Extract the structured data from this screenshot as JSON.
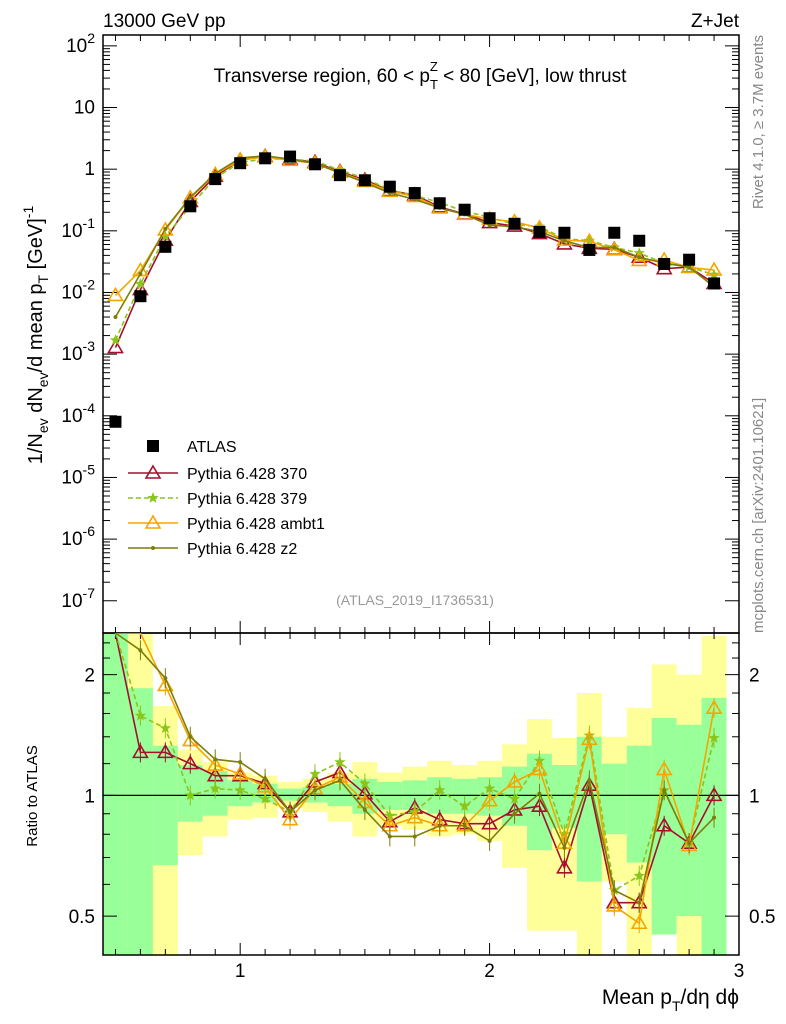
{
  "header": {
    "left": "13000 GeV pp",
    "right": "Z+Jet"
  },
  "side_texts": {
    "rivet": "Rivet 4.1.0, ≥ 3.7M events",
    "mcplots": "mcplots.cern.ch [arXiv:2401.10621]"
  },
  "chart_data": {
    "type": "line",
    "title": "Transverse region, 60 < p_T^Z < 80 [GeV], low thrust",
    "title_parts": {
      "a": "Transverse region, 60 < p",
      "sub": "T",
      "sup": "Z",
      "b": " < 80 [GeV], low thrust"
    },
    "analysis_id": "(ATLAS_2019_I1736531)",
    "xlabel": "Mean p_T/dη dϕ",
    "xlabel_parts": {
      "a": "Mean p",
      "sub": "T",
      "b": "/dη dϕ"
    },
    "ylabel": "1/N_ev dN_ev/d mean p_T [GeV]^-1",
    "ylabel_parts": {
      "a": "1/N",
      "s1": "ev",
      "b": " dN",
      "s2": "ev",
      "c": "/d mean p",
      "s3": "T",
      "d": " [GeV]",
      "sup": "-1"
    },
    "ratio_ylabel": "Ratio to ATLAS",
    "xlim": [
      0.45,
      3.0
    ],
    "ylim": [
      3e-08,
      150
    ],
    "ratio_ylim": [
      0.4,
      2.54
    ],
    "x_ticks": [
      "1",
      "2",
      "3"
    ],
    "y_ticks": [
      "10^2",
      "10",
      "1",
      "10^-1",
      "10^-2",
      "10^-3",
      "10^-4",
      "10^-5",
      "10^-6",
      "10^-7"
    ],
    "ratio_ticks": [
      "2",
      "1",
      "0.5"
    ],
    "x": [
      0.5,
      0.6,
      0.7,
      0.8,
      0.9,
      1.0,
      1.1,
      1.2,
      1.3,
      1.4,
      1.5,
      1.6,
      1.7,
      1.8,
      1.9,
      2.0,
      2.1,
      2.2,
      2.3,
      2.4,
      2.5,
      2.6,
      2.7,
      2.8,
      2.9
    ],
    "atlas": {
      "name": "ATLAS",
      "values": [
        8e-05,
        0.0087,
        0.055,
        0.25,
        0.69,
        1.25,
        1.5,
        1.6,
        1.2,
        0.8,
        0.66,
        0.52,
        0.41,
        0.28,
        0.22,
        0.16,
        0.13,
        0.096,
        0.093,
        0.049,
        0.093,
        0.069,
        0.029,
        0.034,
        0.014
      ],
      "stat_band": [
        [
          0.3,
          3
        ],
        [
          0.3,
          1.85
        ],
        [
          0.67,
          1.33
        ],
        [
          0.86,
          1.19
        ],
        [
          0.89,
          1.15
        ],
        [
          0.94,
          1.09
        ],
        [
          0.96,
          1.07
        ],
        [
          0.97,
          1.04
        ],
        [
          0.96,
          1.05
        ],
        [
          0.94,
          1.07
        ],
        [
          0.9,
          1.1
        ],
        [
          0.92,
          1.08
        ],
        [
          0.92,
          1.09
        ],
        [
          0.9,
          1.11
        ],
        [
          0.9,
          1.1
        ],
        [
          0.89,
          1.11
        ],
        [
          0.84,
          1.18
        ],
        [
          0.73,
          1.27
        ],
        [
          0.83,
          1.19
        ],
        [
          0.61,
          1.4
        ],
        [
          0.8,
          1.2
        ],
        [
          0.68,
          1.33
        ],
        [
          0.45,
          1.56
        ],
        [
          0.5,
          1.5
        ],
        [
          0.3,
          1.75
        ]
      ],
      "total_band": [
        [
          0.3,
          3
        ],
        [
          0.3,
          3
        ],
        [
          0.3,
          1.67
        ],
        [
          0.71,
          1.3
        ],
        [
          0.79,
          1.21
        ],
        [
          0.87,
          1.14
        ],
        [
          0.88,
          1.12
        ],
        [
          0.93,
          1.08
        ],
        [
          0.91,
          1.1
        ],
        [
          0.86,
          1.14
        ],
        [
          0.79,
          1.21
        ],
        [
          0.84,
          1.14
        ],
        [
          0.82,
          1.18
        ],
        [
          0.79,
          1.22
        ],
        [
          0.8,
          1.19
        ],
        [
          0.77,
          1.22
        ],
        [
          0.66,
          1.34
        ],
        [
          0.46,
          1.55
        ],
        [
          0.46,
          1.39
        ],
        [
          0.3,
          1.8
        ],
        [
          0.61,
          1.4
        ],
        [
          0.3,
          1.65
        ],
        [
          0.45,
          2.12
        ],
        [
          0.3,
          2.0
        ],
        [
          0.3,
          2.5
        ]
      ]
    },
    "series": [
      {
        "name": "Pythia 6.428 370",
        "color": "#a50f2e",
        "marker": "triangle-open",
        "dash": false,
        "ratio": [
          16,
          1.28,
          1.28,
          1.2,
          1.12,
          1.12,
          1.07,
          0.91,
          1.08,
          1.14,
          1.01,
          0.86,
          0.93,
          0.87,
          0.85,
          0.85,
          0.92,
          0.94,
          0.66,
          1.06,
          0.54,
          0.54,
          0.84,
          0.76,
          1.0
        ]
      },
      {
        "name": "Pythia 6.428 379",
        "color": "#8bc41a",
        "marker": "star",
        "dash": true,
        "ratio": [
          21,
          1.58,
          1.47,
          1.0,
          1.04,
          1.03,
          0.98,
          0.91,
          1.13,
          1.21,
          1.07,
          0.89,
          0.91,
          1.03,
          0.94,
          1.04,
          0.98,
          1.22,
          0.8,
          1.41,
          0.58,
          0.63,
          1.03,
          0.76,
          1.39
        ]
      },
      {
        "name": "Pythia 6.428 ambt1",
        "color": "#f5a500",
        "marker": "triangle-open",
        "dash": false,
        "ratio": [
          112,
          2.6,
          1.88,
          1.37,
          1.19,
          1.13,
          1.05,
          0.87,
          1.04,
          1.11,
          0.96,
          0.84,
          0.88,
          0.84,
          0.84,
          0.97,
          1.08,
          1.16,
          0.76,
          1.38,
          0.53,
          0.48,
          1.16,
          0.75,
          1.65
        ]
      },
      {
        "name": "Pythia 6.428 z2",
        "color": "#7d7d0a",
        "marker": "dot",
        "dash": false,
        "ratio": [
          50,
          2.3,
          1.96,
          1.4,
          1.23,
          1.21,
          1.1,
          0.91,
          1.03,
          1.09,
          0.92,
          0.79,
          0.79,
          0.84,
          0.84,
          0.77,
          0.9,
          1.01,
          0.74,
          1.09,
          0.58,
          0.54,
          1.03,
          0.76,
          0.88
        ]
      }
    ]
  }
}
